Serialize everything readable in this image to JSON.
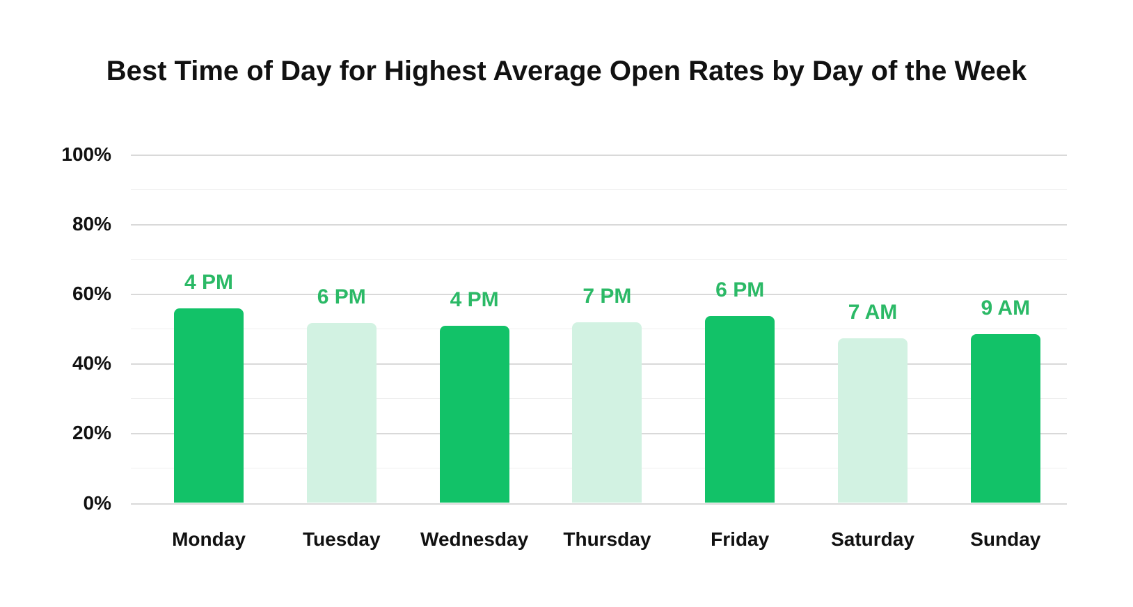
{
  "title": "Best Time of Day for Highest Average Open Rates by Day of the Week",
  "chart_data": {
    "type": "bar",
    "title": "Best Time of Day for Highest Average Open Rates by Day of the Week",
    "categories": [
      "Monday",
      "Tuesday",
      "Wednesday",
      "Thursday",
      "Friday",
      "Saturday",
      "Sunday"
    ],
    "values": [
      55.8,
      51.7,
      50.9,
      51.9,
      53.6,
      47.3,
      48.5
    ],
    "bar_labels": [
      "4 PM",
      "6 PM",
      "4 PM",
      "7 PM",
      "6 PM",
      "7 AM",
      "9 AM"
    ],
    "bar_styles": [
      "dark",
      "light",
      "dark",
      "light",
      "dark",
      "light",
      "dark"
    ],
    "xlabel": "",
    "ylabel": "",
    "ylim": [
      0,
      100
    ],
    "y_tick_labels": [
      "0%",
      "20%",
      "40%",
      "60%",
      "80%",
      "100%"
    ],
    "grid": "horizontal lines every 10%, darker lines at labeled 20% steps",
    "legend": "none",
    "colors": {
      "dark_bar": "#12c268",
      "light_bar": "#d2f2e2",
      "bar_label_text": "#2bb966",
      "axis_text": "#111111",
      "major_gridline": "#d9d9d9",
      "minor_gridline": "#efefef",
      "background": "#ffffff"
    }
  }
}
